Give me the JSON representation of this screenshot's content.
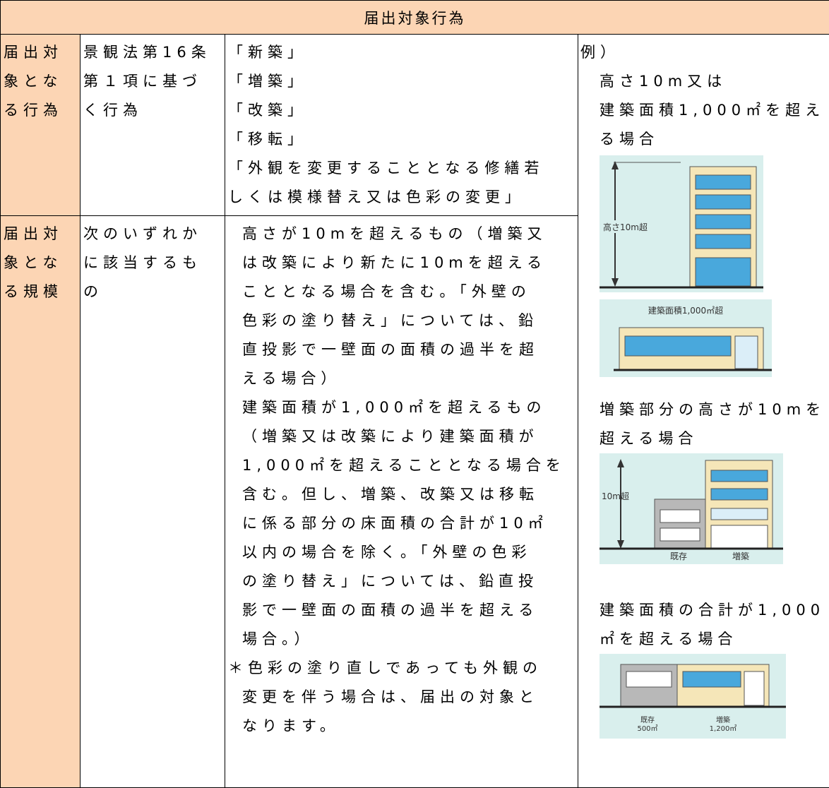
{
  "header": {
    "title": "届出対象行為"
  },
  "rows": [
    {
      "label": [
        "届出対",
        "象とな",
        "る行為"
      ],
      "basis": [
        "景観法第16条",
        "第１項に基づ",
        "く行為"
      ],
      "content": [
        "「新築」",
        "「増築」",
        "「改築」",
        "「移転」",
        "「外観を変更することとなる修繕若",
        "しくは模様替え又は色彩の変更」"
      ]
    },
    {
      "label": [
        "届出対",
        "象とな",
        "る規模"
      ],
      "basis": [
        "次のいずれか",
        "に該当するも",
        "の"
      ],
      "content": [
        "高さが10mを超えるもの（増築又",
        "は改築により新たに10mを超える",
        "こととなる場合を含む。「外壁の",
        "色彩の塗り替え」については、鉛",
        "直投影で一壁面の面積の過半を超",
        "える場合）",
        "建築面積が1,000㎡を超えるもの",
        "（増築又は改築により建築面積が",
        "1,000㎡を超えることとなる場合を",
        "含む。但し、増築、改築又は移転",
        "に係る部分の床面積の合計が10㎡",
        "以内の場合を除く。「外壁の色彩",
        "の塗り替え」については、鉛直投",
        "影で一壁面の面積の過半を超える",
        "場合。）",
        "＊色彩の塗り直しであっても外観の",
        "変更を伴う場合は、届出の対象と",
        "なります。"
      ]
    }
  ],
  "examples": {
    "intro": "例）",
    "items": [
      {
        "lines": [
          "高さ10m又は",
          "建築面積1,000㎡を超え",
          "る場合"
        ],
        "figures": [
          {
            "labels": [
              "高さ10m超"
            ]
          },
          {
            "labels": [
              "建築面積1,000㎡超"
            ]
          }
        ]
      },
      {
        "lines": [
          "増築部分の高さが10mを",
          "超える場合"
        ],
        "figures": [
          {
            "labels": [
              "10m超",
              "既存",
              "増築"
            ]
          }
        ]
      },
      {
        "lines": [
          "建築面積の合計が1,000",
          "㎡を超える場合"
        ],
        "figures": [
          {
            "labels": [
              "既存",
              "500㎡",
              "増築",
              "1,200㎡"
            ]
          }
        ]
      }
    ]
  }
}
